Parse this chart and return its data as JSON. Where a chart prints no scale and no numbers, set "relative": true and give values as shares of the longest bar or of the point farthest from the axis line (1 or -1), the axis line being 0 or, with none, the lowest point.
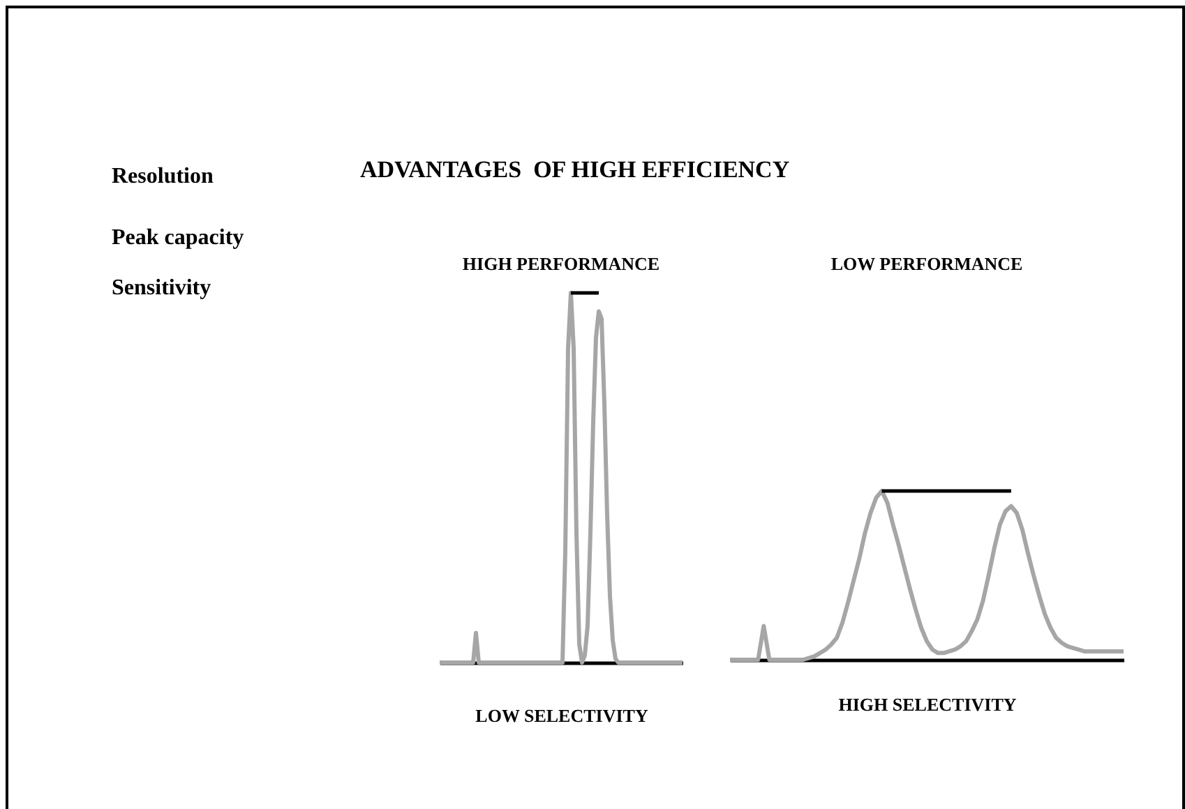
{
  "chart_data": [
    {
      "type": "other",
      "title": "ADVANTAGES  OF HIGH EFFICIENCY",
      "annotations": [
        "Resolution",
        "Peak capacity",
        "Sensitivity"
      ]
    },
    {
      "type": "line",
      "title": "HIGH   PERFORMANCE",
      "xlabel": "LOW SELECTIVITY",
      "relative": true,
      "marker": "none",
      "categories": [
        null,
        null,
        null,
        null,
        null,
        null,
        null,
        null,
        null,
        null,
        null,
        null,
        null,
        null,
        null,
        null,
        null,
        null,
        null,
        null,
        null,
        null,
        null,
        null,
        null,
        null,
        null,
        null,
        null,
        null,
        null,
        null,
        null,
        null,
        null,
        null,
        null,
        null,
        null,
        null,
        null,
        null,
        null,
        null,
        null,
        null,
        null,
        null,
        null,
        null,
        null,
        null,
        null,
        null,
        null,
        null,
        null,
        null,
        null,
        null,
        null,
        null,
        null,
        null,
        null,
        null,
        null,
        null,
        null,
        null,
        null,
        null,
        null,
        null,
        null,
        null,
        null,
        null,
        null,
        null,
        null,
        null,
        null,
        null,
        null,
        null,
        null,
        null
      ],
      "series": [
        {
          "color": "#a6a6a6",
          "values": [
            0,
            0,
            0,
            0,
            0,
            0,
            0,
            0,
            0,
            0,
            0,
            0,
            0,
            0.08,
            0,
            0,
            0,
            0,
            0,
            0,
            0,
            0,
            0,
            0,
            0,
            0,
            0,
            0,
            0,
            0,
            0,
            0,
            0,
            0,
            0,
            0,
            0,
            0,
            0,
            0,
            0,
            0,
            0,
            0,
            0,
            0.3,
            0.85,
            1,
            0.85,
            0.35,
            0.05,
            0,
            0.02,
            0.1,
            0.35,
            0.65,
            0.88,
            0.95,
            0.93,
            0.7,
            0.4,
            0.18,
            0.06,
            0.01,
            0,
            0,
            0,
            0,
            0,
            0,
            0,
            0,
            0,
            0,
            0,
            0,
            0,
            0,
            0,
            0,
            0,
            0,
            0,
            0,
            0,
            0,
            0,
            0
          ]
        }
      ],
      "ref_lines": [
        {
          "axis": "y",
          "value": 1,
          "color": "#000000"
        }
      ]
    },
    {
      "type": "line",
      "title": "LOW    PERFORMANCE",
      "xlabel": "HIGH SELECTIVITY",
      "relative": true,
      "marker": "none",
      "categories": [
        null,
        null,
        null,
        null,
        null,
        null,
        null,
        null,
        null,
        null,
        null,
        null,
        null,
        null,
        null,
        null,
        null,
        null,
        null,
        null,
        null,
        null,
        null,
        null,
        null,
        null,
        null,
        null,
        null,
        null,
        null,
        null,
        null,
        null,
        null,
        null,
        null,
        null,
        null,
        null,
        null,
        null,
        null,
        null,
        null,
        null,
        null,
        null,
        null,
        null,
        null,
        null,
        null,
        null,
        null,
        null,
        null,
        null,
        null,
        null,
        null,
        null,
        null,
        null,
        null,
        null,
        null,
        null,
        null,
        null,
        null
      ],
      "series": [
        {
          "color": "#a6a6a6",
          "values": [
            0,
            0,
            0,
            0,
            0,
            0,
            0.2,
            0,
            0,
            0,
            0,
            0,
            0,
            0,
            0.01,
            0.02,
            0.04,
            0.06,
            0.09,
            0.13,
            0.22,
            0.34,
            0.47,
            0.6,
            0.75,
            0.87,
            0.96,
            1,
            0.93,
            0.8,
            0.68,
            0.55,
            0.42,
            0.3,
            0.19,
            0.11,
            0.06,
            0.04,
            0.04,
            0.05,
            0.06,
            0.08,
            0.11,
            0.17,
            0.24,
            0.35,
            0.5,
            0.66,
            0.8,
            0.88,
            0.91,
            0.87,
            0.77,
            0.63,
            0.5,
            0.38,
            0.27,
            0.19,
            0.13,
            0.1,
            0.08,
            0.07,
            0.06,
            0.05,
            0.05,
            0.05,
            0.05,
            0.05,
            0.05,
            0.05,
            0.05
          ]
        }
      ],
      "ref_lines": [
        {
          "axis": "y",
          "value": 1,
          "color": "#000000"
        }
      ]
    }
  ]
}
